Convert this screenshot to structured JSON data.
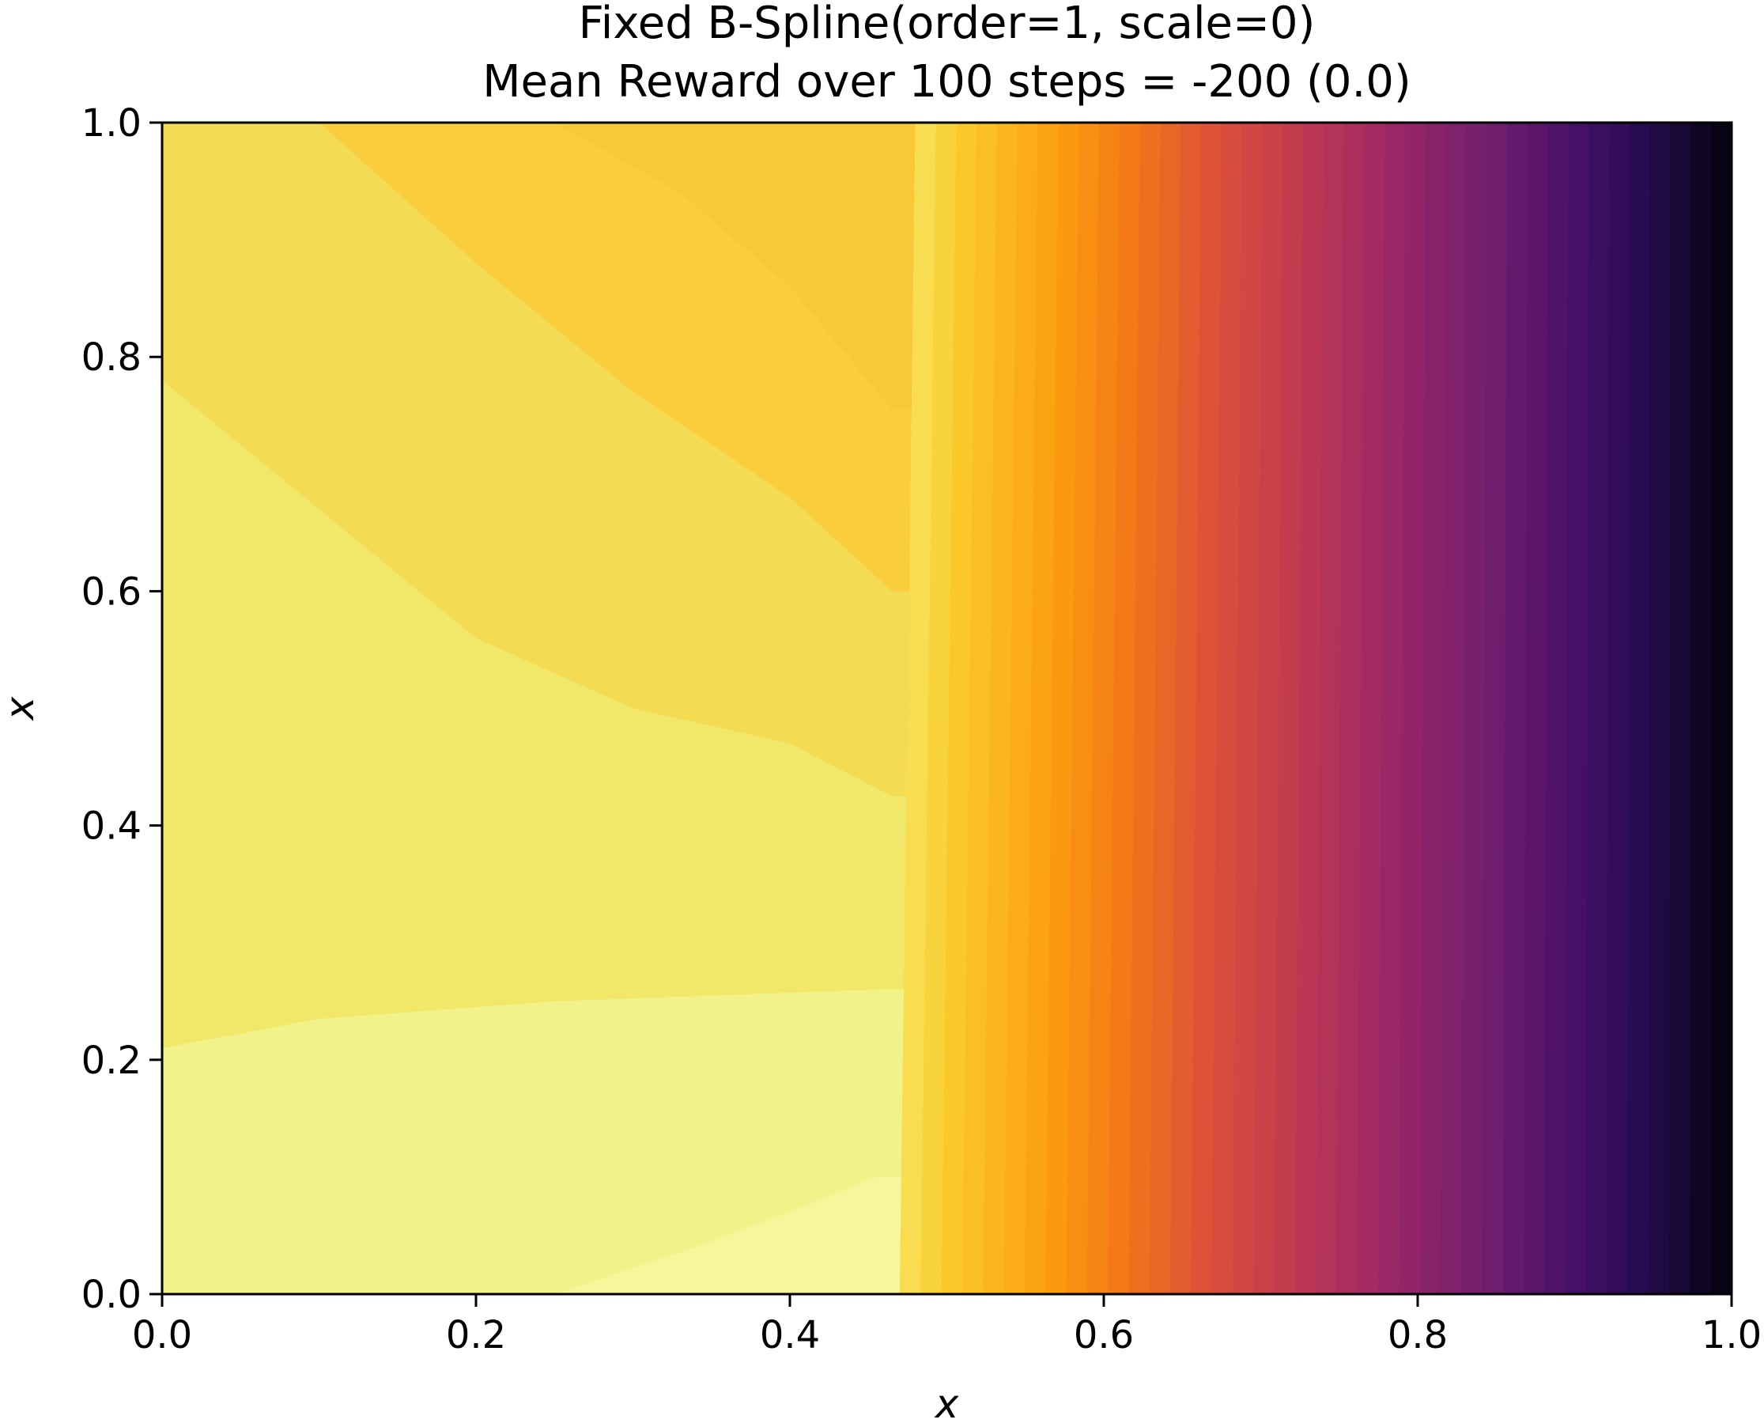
{
  "chart_data": {
    "type": "heatmap",
    "title": "Fixed B-Spline(order=1, scale=0)",
    "subtitle": "Mean Reward over 100 steps = -200 (0.0)",
    "xlabel": "x",
    "ylabel": "x",
    "xlim": [
      0.0,
      1.0
    ],
    "ylim": [
      0.0,
      1.0
    ],
    "x_ticks": [
      "0.0",
      "0.2",
      "0.4",
      "0.6",
      "0.8",
      "1.0"
    ],
    "y_ticks": [
      "0.0",
      "0.2",
      "0.4",
      "0.6",
      "0.8",
      "1.0"
    ],
    "grid": false,
    "legend": "none",
    "colormap": "inferno",
    "colors": {
      "band_0": "#f6f79a",
      "band_1": "#f1f28a",
      "band_2": "#f1e768",
      "band_3": "#f3dc54",
      "band_4": "#f9cd3c",
      "axis": "#000000",
      "background": "#ffffff"
    },
    "left_region_contours": [
      {
        "id": "band-0-boundary",
        "points": [
          [
            0.25,
            0.0
          ],
          [
            0.34,
            0.04
          ],
          [
            0.4,
            0.07
          ],
          [
            0.455,
            0.1
          ]
        ]
      },
      {
        "id": "band-1-boundary",
        "points": [
          [
            0.0,
            0.21
          ],
          [
            0.1,
            0.235
          ],
          [
            0.25,
            0.25
          ],
          [
            0.455,
            0.26
          ]
        ]
      },
      {
        "id": "band-2-boundary",
        "points": [
          [
            0.0,
            0.78
          ],
          [
            0.1,
            0.67
          ],
          [
            0.2,
            0.56
          ],
          [
            0.3,
            0.5
          ],
          [
            0.4,
            0.47
          ],
          [
            0.465,
            0.425
          ]
        ]
      },
      {
        "id": "band-3-boundary",
        "points": [
          [
            0.1,
            1.0
          ],
          [
            0.2,
            0.88
          ],
          [
            0.3,
            0.77
          ],
          [
            0.4,
            0.68
          ],
          [
            0.465,
            0.6
          ]
        ]
      },
      {
        "id": "band-4-boundary",
        "points": [
          [
            0.25,
            1.0
          ],
          [
            0.33,
            0.94
          ],
          [
            0.4,
            0.86
          ],
          [
            0.465,
            0.755
          ]
        ]
      },
      {
        "id": "band-5-boundary",
        "points": [
          [
            0.395,
            1.0
          ],
          [
            0.43,
            0.97
          ],
          [
            0.47,
            0.915
          ]
        ]
      }
    ],
    "gradient_region": {
      "x_start_bottom": 0.47,
      "x_start_top": 0.48,
      "x_end": 1.0,
      "value_direction": "decreasing-with-x",
      "num_bands": 40
    }
  }
}
